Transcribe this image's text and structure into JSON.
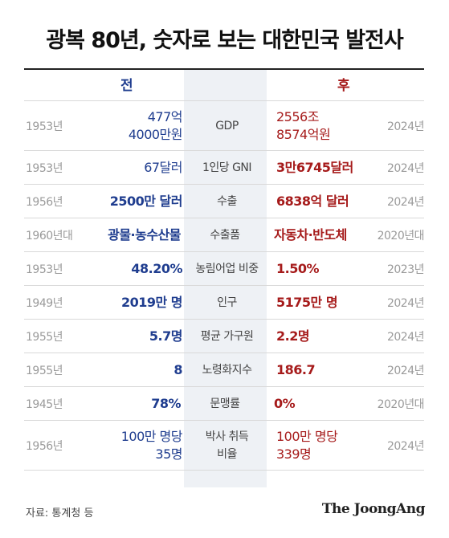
{
  "title": "광복 80년, 숫자로 보는 대한민국 발전사",
  "header": {
    "before": "전",
    "after": "후"
  },
  "rows": [
    {
      "before_year": "1953년",
      "before_value": "477억\n4000만원",
      "label": "GDP",
      "after_value": "2556조\n8574억원",
      "after_year": "2024년"
    },
    {
      "before_year": "1953년",
      "before_value": "67달러",
      "label": "1인당 GNI",
      "after_value": "3만6745달러",
      "after_year": "2024년"
    },
    {
      "before_year": "1956년",
      "before_value": "2500만 달러",
      "label": "수출",
      "after_value": "6838억 달러",
      "after_year": "2024년"
    },
    {
      "before_year": "1960년대",
      "before_value": "광물·농수산물",
      "label": "수출품",
      "after_value": "자동차·반도체",
      "after_year": "2020년대"
    },
    {
      "before_year": "1953년",
      "before_value": "48.20%",
      "label": "농림어업 비중",
      "after_value": "1.50%",
      "after_year": "2023년"
    },
    {
      "before_year": "1949년",
      "before_value": "2019만 명",
      "label": "인구",
      "after_value": "5175만 명",
      "after_year": "2024년"
    },
    {
      "before_year": "1955년",
      "before_value": "5.7명",
      "label": "평균 가구원",
      "after_value": "2.2명",
      "after_year": "2024년"
    },
    {
      "before_year": "1955년",
      "before_value": "8",
      "label": "노령화지수",
      "after_value": "186.7",
      "after_year": "2024년"
    },
    {
      "before_year": "1945년",
      "before_value": "78%",
      "label": "문맹률",
      "after_value": "0%",
      "after_year": "2020년대"
    },
    {
      "before_year": "1956년",
      "before_value": "100만 명당\n35명",
      "label": "박사 취득\n비율",
      "after_value": "100만 명당\n339명",
      "after_year": "2024년"
    }
  ],
  "source": "자료: 통계청 등",
  "logo": "The JoongAng",
  "colors": {
    "before": "#1f3d8f",
    "after": "#a61b1b",
    "center_band": "#eef1f5"
  }
}
